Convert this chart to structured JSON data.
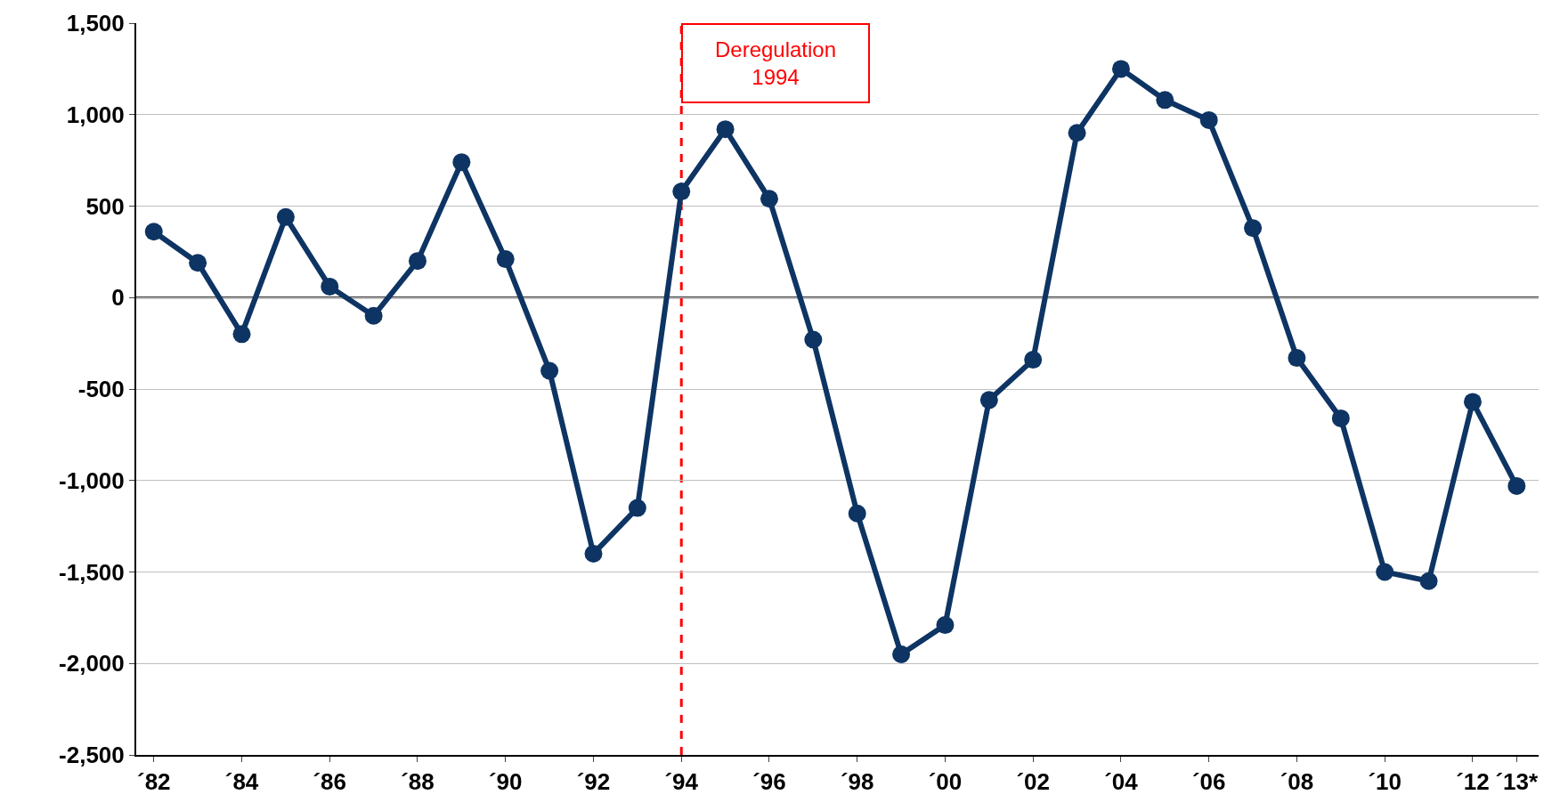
{
  "chart_data": {
    "type": "line",
    "categories": [
      "´82",
      null,
      "´84",
      null,
      "´86",
      null,
      "´88",
      null,
      "´90",
      null,
      "´92",
      null,
      "´94",
      null,
      "´96",
      null,
      "´98",
      null,
      "´00",
      null,
      "´02",
      null,
      "´04",
      null,
      "´06",
      null,
      "´08",
      null,
      "´10",
      null,
      "´12",
      "´13*"
    ],
    "series": [
      {
        "color": "#0d3463",
        "values": [
          360,
          190,
          -200,
          440,
          60,
          -100,
          200,
          740,
          210,
          -400,
          -1400,
          -1150,
          580,
          920,
          540,
          -230,
          -1180,
          -1950,
          -1790,
          -560,
          -340,
          900,
          1250,
          1080,
          970,
          380,
          -330,
          -660,
          -1500,
          -1550,
          -570,
          -1030
        ]
      }
    ],
    "ylim": [
      -2500,
      1500
    ],
    "yticks": [
      {
        "value": -2500,
        "label": "-2,500"
      },
      {
        "value": -2000,
        "label": "-2,000"
      },
      {
        "value": -1500,
        "label": "-1,500"
      },
      {
        "value": -1000,
        "label": "-1,000"
      },
      -500,
      0,
      500,
      {
        "value": 1000,
        "label": "1,000"
      },
      {
        "value": 1500,
        "label": "1,500"
      }
    ],
    "grid": "y",
    "marker": "circle",
    "line_style": "solid",
    "ref_lines": [
      {
        "axis": "y",
        "value": 0,
        "color": "#000000",
        "line_style": "solid"
      },
      {
        "axis": "x",
        "value": "´94",
        "label": "Deregulation\n1994",
        "color": "#ff0000",
        "line_style": "dashed"
      }
    ]
  }
}
